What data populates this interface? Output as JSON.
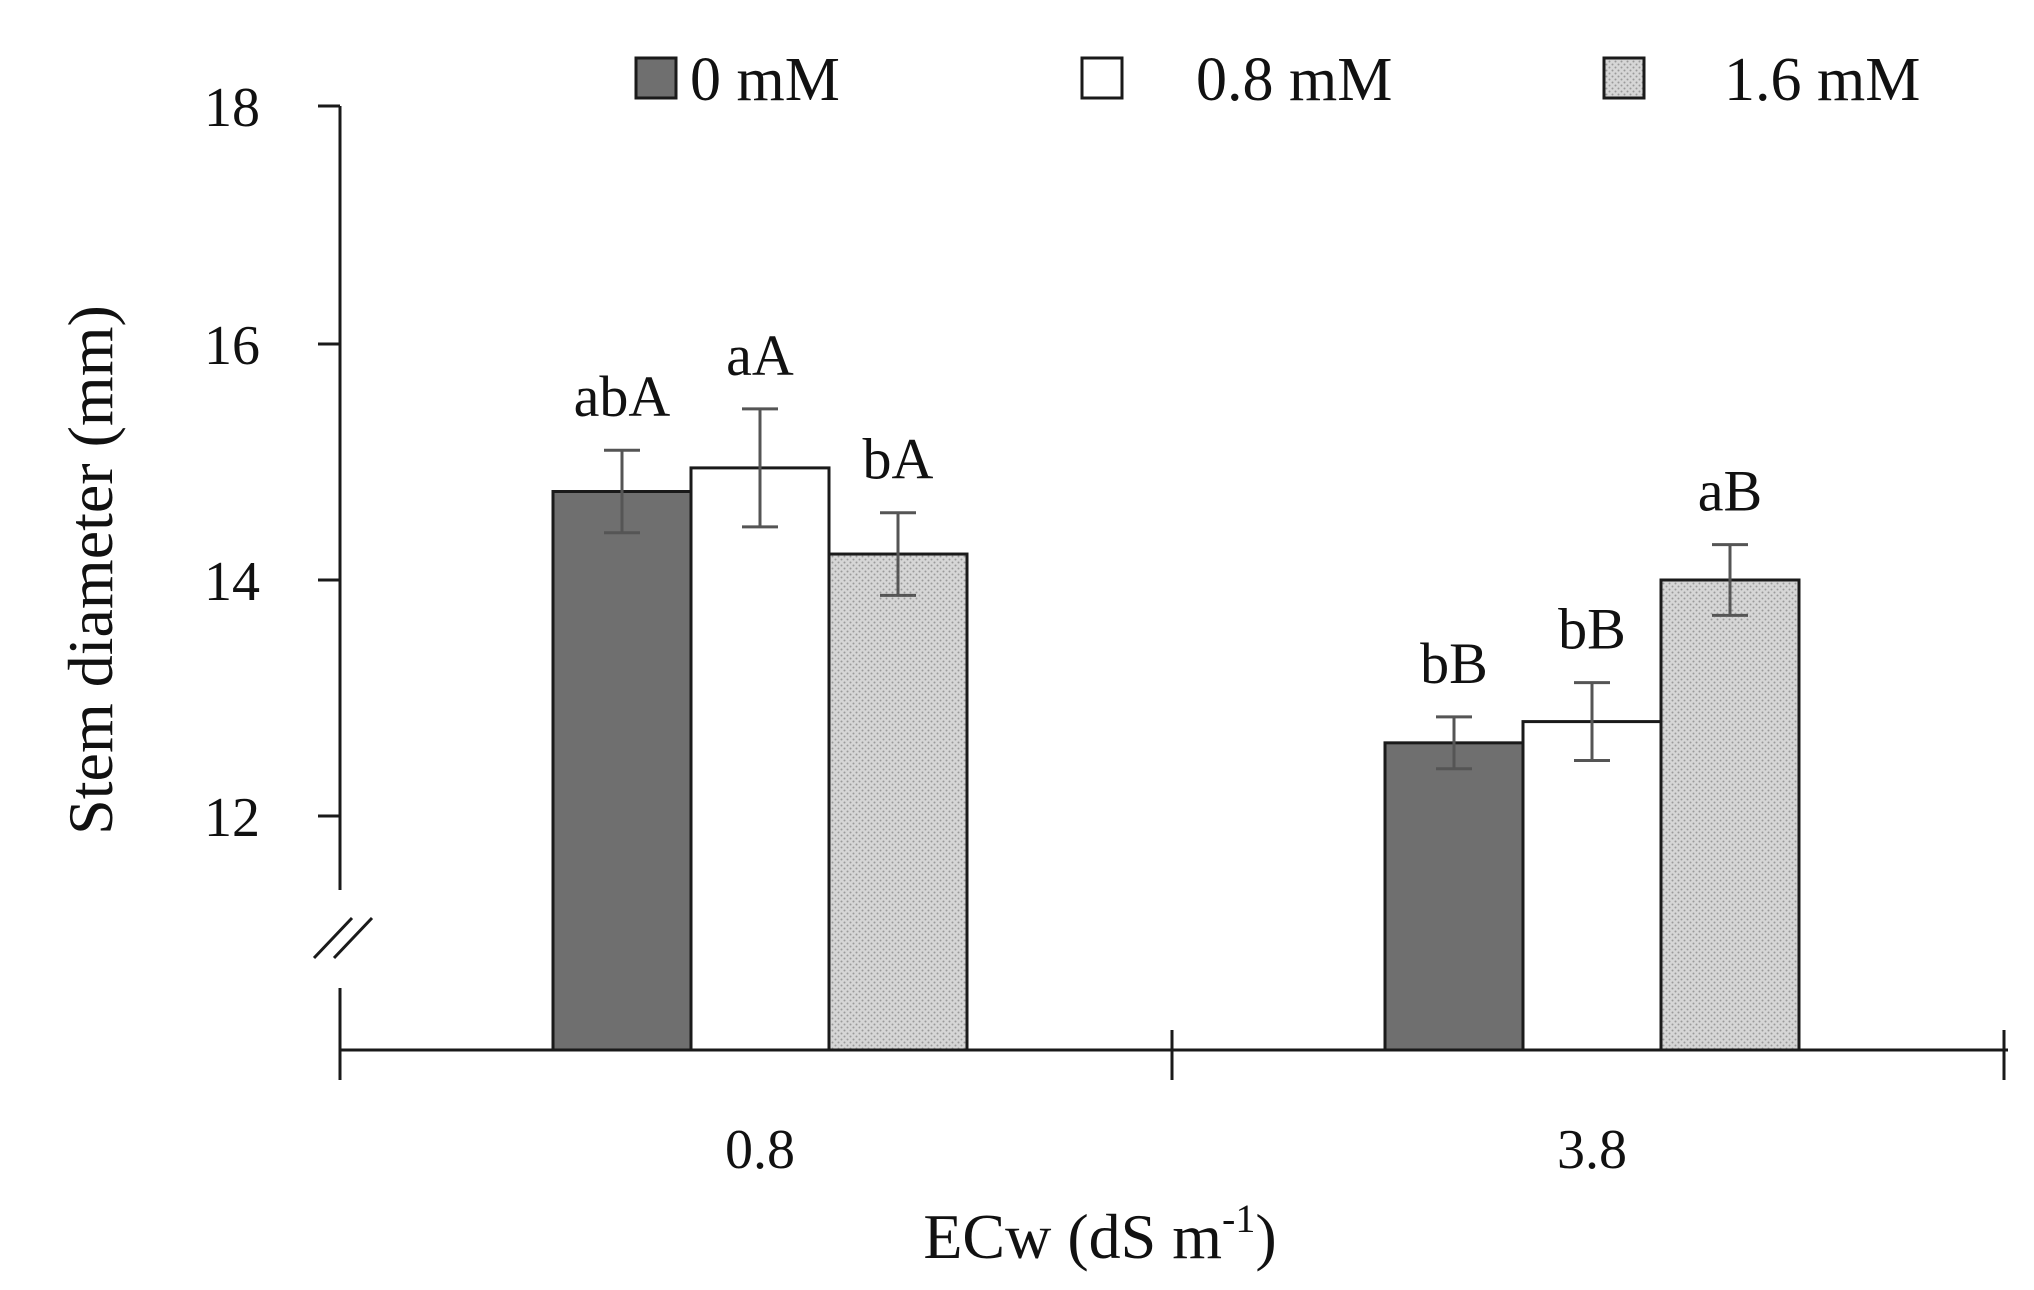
{
  "chart_data": {
    "type": "bar",
    "title": "",
    "xlabel": "ECw (dS m-1)",
    "xlabel_main": "ECw (dS m",
    "xlabel_sup": "-1",
    "xlabel_close": ")",
    "ylabel": "Stem diameter (mm)",
    "ylim": [
      10,
      18
    ],
    "yticks": [
      12,
      14,
      16,
      18
    ],
    "axis_break": true,
    "grid": false,
    "legend_position": "top",
    "categories": [
      "0.8",
      "3.8"
    ],
    "series": [
      {
        "name": "0 mM",
        "values": [
          14.75,
          12.62
        ],
        "errors": [
          0.35,
          0.22
        ],
        "labels": [
          "abA",
          "bB"
        ],
        "fill": "#6f6f6f",
        "pattern": "solid"
      },
      {
        "name": "0.8 mM",
        "values": [
          14.95,
          12.8
        ],
        "errors": [
          0.5,
          0.33
        ],
        "labels": [
          "aA",
          "bB"
        ],
        "fill": "#ffffff",
        "pattern": "solid"
      },
      {
        "name": "1.6 mM",
        "values": [
          14.22,
          14.0
        ],
        "errors": [
          0.35,
          0.3
        ],
        "labels": [
          "bA",
          "aB"
        ],
        "fill": "#d4d4d4",
        "pattern": "dots"
      }
    ]
  },
  "colors": {
    "axis": "#1a1a1a",
    "bar_stroke": "#1a1a1a",
    "error_bar": "#555555"
  }
}
